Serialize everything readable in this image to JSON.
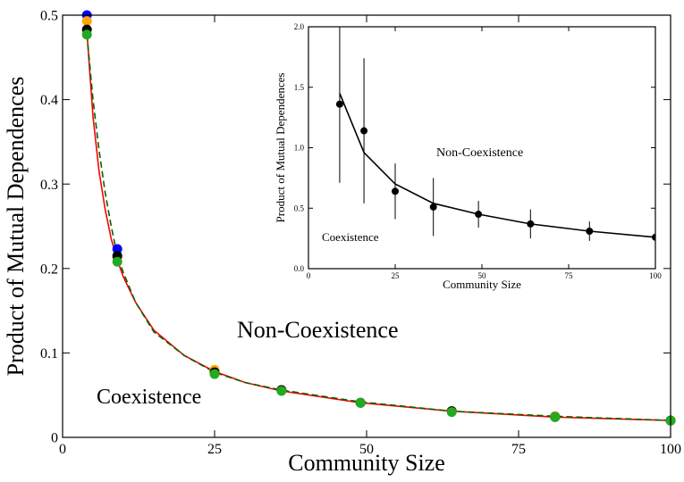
{
  "chart_data": [
    {
      "type": "scatter",
      "xlabel": "Community Size",
      "ylabel": "Product of Mutual Dependences",
      "xlim": [
        0,
        100
      ],
      "xticks": [
        0,
        25,
        50,
        75,
        100
      ],
      "ylim": [
        0,
        0.5
      ],
      "yticks": [
        0,
        0.1,
        0.2,
        0.3,
        0.4,
        0.5
      ],
      "annotations": [
        "Non-Coexistence",
        "Coexistence"
      ],
      "series": [
        {
          "style": "line",
          "color": "#ff0000",
          "dash": false,
          "x": [
            4,
            5,
            6,
            7,
            8,
            9,
            10,
            12,
            15,
            20,
            25,
            30,
            36,
            49,
            64,
            81,
            100
          ],
          "values": [
            0.48,
            0.38,
            0.315,
            0.27,
            0.235,
            0.21,
            0.19,
            0.16,
            0.127,
            0.097,
            0.078,
            0.065,
            0.055,
            0.041,
            0.031,
            0.024,
            0.02
          ]
        },
        {
          "style": "line",
          "color": "#006400",
          "dash": true,
          "x": [
            4,
            5,
            6,
            7,
            8,
            9,
            10,
            12,
            15,
            20,
            25,
            30,
            36,
            49,
            64,
            81,
            100
          ],
          "values": [
            0.477,
            0.4,
            0.34,
            0.29,
            0.25,
            0.215,
            0.195,
            0.16,
            0.125,
            0.097,
            0.077,
            0.065,
            0.056,
            0.042,
            0.031,
            0.025,
            0.02
          ]
        },
        {
          "style": "markers",
          "color": "#0000ff",
          "x": [
            4,
            9,
            25,
            36,
            49,
            64,
            81,
            100
          ],
          "values": [
            0.5,
            0.223,
            0.078,
            0.056,
            0.041,
            0.031,
            0.025,
            0.02
          ]
        },
        {
          "style": "markers",
          "color": "#ffa500",
          "x": [
            4,
            9,
            25,
            36,
            49,
            64,
            81,
            100
          ],
          "values": [
            0.493,
            0.213,
            0.08,
            0.056,
            0.041,
            0.031,
            0.025,
            0.02
          ]
        },
        {
          "style": "markers",
          "color": "#000000",
          "x": [
            4,
            9,
            25,
            36,
            49,
            64,
            81,
            100
          ],
          "values": [
            0.483,
            0.215,
            0.077,
            0.056,
            0.041,
            0.031,
            0.024,
            0.02
          ]
        },
        {
          "style": "markers",
          "color": "#22aa22",
          "x": [
            4,
            9,
            25,
            36,
            49,
            64,
            81,
            100
          ],
          "values": [
            0.477,
            0.208,
            0.075,
            0.055,
            0.041,
            0.03,
            0.024,
            0.02
          ]
        }
      ]
    },
    {
      "type": "scatter",
      "xlabel": "Community Size",
      "ylabel": "Product of Mutual Dependences",
      "xlim": [
        0,
        100
      ],
      "xticks": [
        0,
        25,
        50,
        75,
        100
      ],
      "ylim": [
        0,
        2
      ],
      "yticks": [
        {
          "value": 0,
          "label": "0.0"
        },
        {
          "value": 0.5,
          "label": "0.5"
        },
        {
          "value": 1,
          "label": "1.0"
        },
        {
          "value": 1.5,
          "label": "1.5"
        },
        {
          "value": 2,
          "label": "2.0"
        }
      ],
      "annotations": [
        "Non-Coexistence",
        "Coexistence"
      ],
      "series": [
        {
          "style": "line",
          "color": "#000000",
          "dash": false,
          "x": [
            9,
            16,
            25,
            36,
            49,
            64,
            81,
            100
          ],
          "values": [
            1.45,
            0.96,
            0.7,
            0.54,
            0.45,
            0.37,
            0.31,
            0.26
          ]
        },
        {
          "style": "markers",
          "color": "#000000",
          "x": [
            9,
            16,
            25,
            36,
            49,
            64,
            81,
            100
          ],
          "values": [
            1.36,
            1.14,
            0.64,
            0.51,
            0.45,
            0.37,
            0.31,
            0.26
          ],
          "errors": [
            0.65,
            0.6,
            0.23,
            0.24,
            0.11,
            0.12,
            0.08,
            0.05
          ]
        }
      ]
    }
  ]
}
